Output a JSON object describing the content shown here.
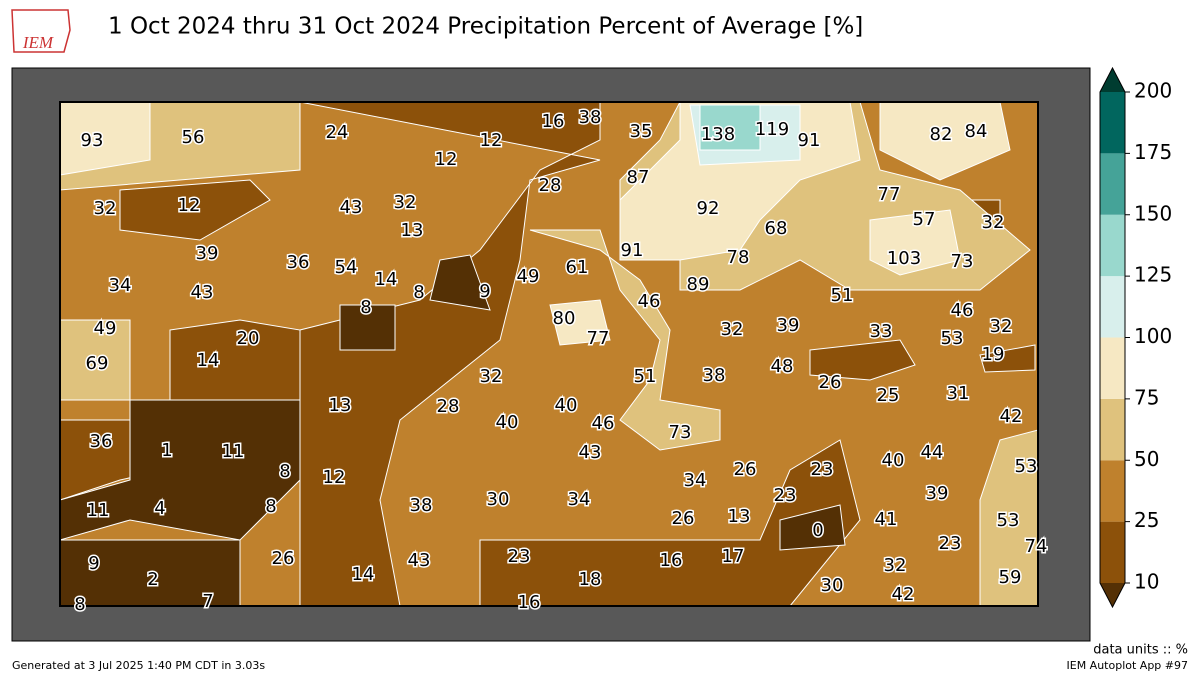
{
  "header": {
    "logo": "IEM",
    "title": "1 Oct 2024 thru 31 Oct 2024 Precipitation Percent of Average [%]"
  },
  "stations": [
    93,
    56,
    24,
    12,
    16,
    38,
    35,
    138,
    119,
    91,
    82,
    84,
    12,
    28,
    87,
    32,
    12,
    43,
    32,
    13,
    92,
    77,
    57,
    32,
    68,
    39,
    36,
    54,
    14,
    8,
    9,
    49,
    61,
    91,
    78,
    103,
    73,
    34,
    43,
    8,
    46,
    89,
    51,
    46,
    49,
    80,
    77,
    32,
    39,
    33,
    53,
    32,
    20,
    19,
    69,
    14,
    32,
    51,
    38,
    48,
    26,
    25,
    31,
    13,
    28,
    40,
    46,
    40,
    73,
    42,
    36,
    1,
    11,
    43,
    40,
    44,
    53,
    23,
    26,
    8,
    12,
    34,
    39,
    23,
    11,
    4,
    8,
    38,
    30,
    34,
    26,
    13,
    41,
    53,
    0,
    26,
    14,
    43,
    23,
    16,
    17,
    23,
    74,
    18,
    32,
    9,
    2,
    59,
    30,
    42,
    7,
    8,
    16
  ],
  "colorbar": {
    "ticks": [
      10,
      25,
      50,
      75,
      100,
      125,
      150,
      175,
      200
    ],
    "colors": [
      "#8c510a",
      "#bf812d",
      "#dfc27d",
      "#f6e8c3",
      "#d8efec",
      "#99d8cd",
      "#45a398",
      "#01665e"
    ],
    "under_color": "#543005",
    "over_color": "#003c30"
  },
  "units_label": "data units :: %",
  "footer": {
    "generated": "Generated at 3 Jul 2025 1:40 PM CDT in 3.03s",
    "app": "IEM Autoplot App #97"
  }
}
